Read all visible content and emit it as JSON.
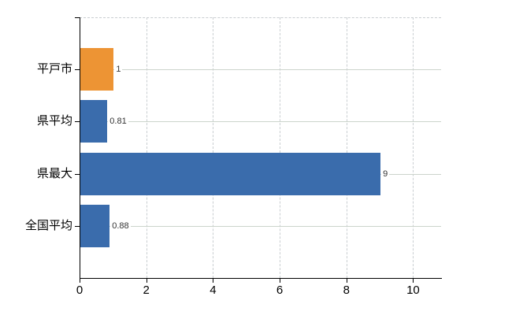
{
  "chart_data": {
    "type": "bar",
    "orientation": "horizontal",
    "title": "",
    "xlabel": "",
    "ylabel": "",
    "categories": [
      "平戸市",
      "県平均",
      "県最大",
      "全国平均"
    ],
    "values": [
      1,
      0.81,
      9,
      0.88
    ],
    "value_labels": [
      "1",
      "0.81",
      "9",
      "0.88"
    ],
    "bar_colors": [
      "#ed9434",
      "#3a6cac",
      "#3a6cac",
      "#3a6cac"
    ],
    "x_ticks": [
      0,
      2,
      4,
      6,
      8,
      10
    ],
    "x_tick_labels": [
      "0",
      "2",
      "4",
      "6",
      "8",
      "10"
    ],
    "xlim": [
      0,
      10.84
    ],
    "grid": true,
    "legend": false
  },
  "colors": {
    "background": "#ffffff",
    "axis": "#000000",
    "grid_horizontal": "#ccd4cc",
    "grid_vertical": "#c9ced1",
    "category_text": "#000000",
    "value_text": "#333333",
    "bar_blue": "#3a6cac",
    "bar_orange": "#ed9434"
  }
}
